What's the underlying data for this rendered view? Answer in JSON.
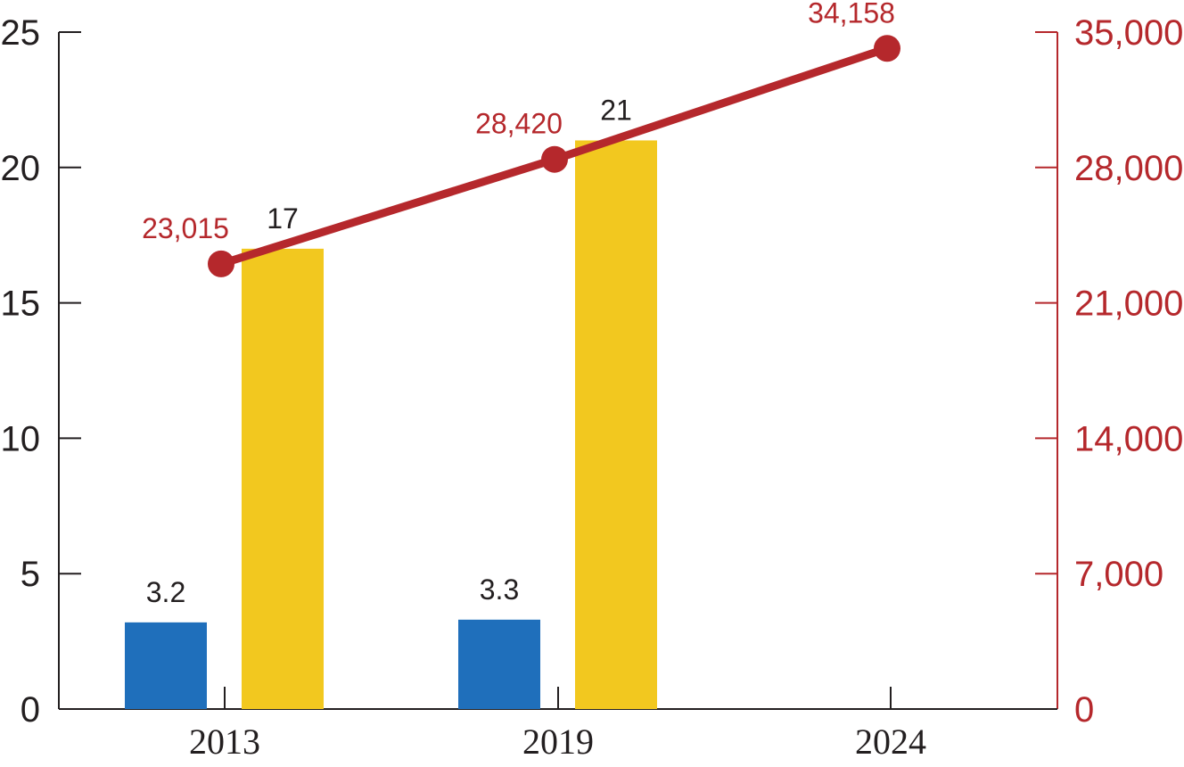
{
  "chart_data": {
    "type": "bar",
    "categories": [
      "2013",
      "2019",
      "2024"
    ],
    "series": [
      {
        "type": "bar",
        "axis": "left",
        "color": "#1f6fbb",
        "values": [
          3.2,
          3.3,
          null
        ],
        "labels": [
          "3.2",
          "3.3",
          ""
        ]
      },
      {
        "type": "bar",
        "axis": "left",
        "color": "#f2c81f",
        "values": [
          17,
          21,
          null
        ],
        "labels": [
          "17",
          "21",
          ""
        ]
      },
      {
        "type": "line",
        "axis": "right",
        "color": "#b5282c",
        "values": [
          23015,
          28420,
          34158
        ],
        "labels": [
          "23,015",
          "28,420",
          "34,158"
        ]
      }
    ],
    "left_axis": {
      "ylim": [
        0,
        25
      ],
      "ticks": [
        0,
        5,
        10,
        15,
        20,
        25
      ],
      "tick_labels": [
        "0",
        "5",
        "10",
        "15",
        "20",
        "25"
      ]
    },
    "right_axis": {
      "ylim": [
        0,
        35000
      ],
      "ticks": [
        0,
        7000,
        14000,
        21000,
        28000,
        35000
      ],
      "tick_labels": [
        "0",
        "7,000",
        "14,000",
        "21,000",
        "28,000",
        "35,000"
      ],
      "color": "#b5282c"
    },
    "title": "",
    "xlabel": "",
    "ylabel": "",
    "grid": false,
    "legend": "none"
  }
}
